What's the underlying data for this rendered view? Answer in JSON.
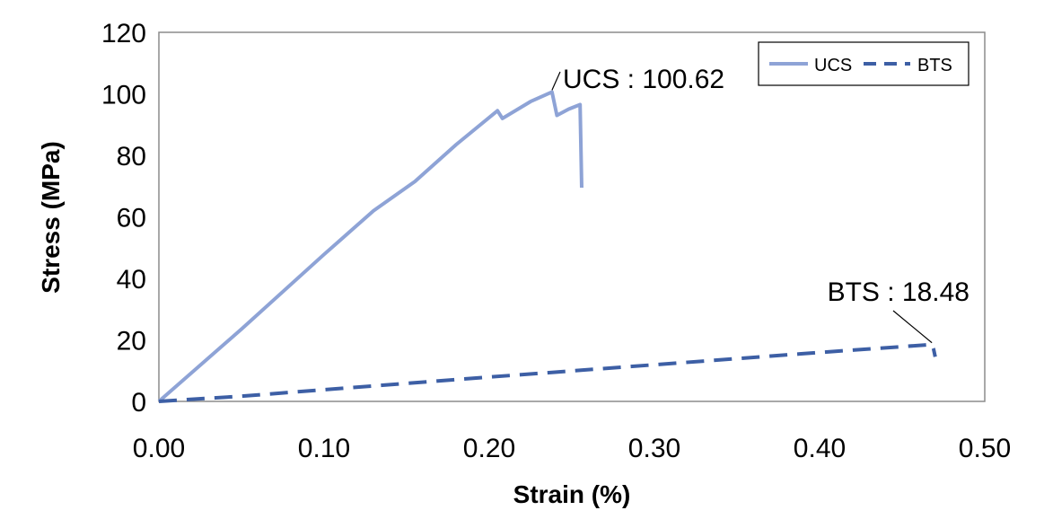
{
  "chart_data": {
    "type": "line",
    "title": "",
    "xlabel": "Strain (%)",
    "ylabel": "Stress (MPa)",
    "xlim": [
      0,
      0.5
    ],
    "ylim": [
      0,
      120
    ],
    "x_ticks": [
      "0.00",
      "0.10",
      "0.20",
      "0.30",
      "0.40",
      "0.50"
    ],
    "y_ticks": [
      "0",
      "20",
      "40",
      "60",
      "80",
      "100",
      "120"
    ],
    "grid": false,
    "legend_position": "top-right",
    "series": [
      {
        "name": "UCS",
        "color": "#8ea3d6",
        "line_style": "solid",
        "x": [
          0.0,
          0.05,
          0.1,
          0.13,
          0.155,
          0.18,
          0.205,
          0.208,
          0.225,
          0.238,
          0.241,
          0.248,
          0.255,
          0.256
        ],
        "y": [
          0.0,
          23.5,
          47.8,
          62.0,
          71.5,
          83.5,
          94.5,
          92.0,
          97.5,
          100.62,
          93.0,
          95.0,
          96.5,
          69.5
        ]
      },
      {
        "name": "BTS",
        "color": "#3d5fa5",
        "line_style": "dashed",
        "x": [
          0.0,
          0.05,
          0.1,
          0.2,
          0.3,
          0.4,
          0.468,
          0.469,
          0.47
        ],
        "y": [
          0.0,
          1.7,
          3.8,
          7.9,
          11.9,
          15.9,
          18.48,
          17.0,
          14.5
        ]
      }
    ],
    "annotations": [
      {
        "text": "UCS : 100.62",
        "series": "UCS",
        "x": 0.238,
        "y": 100.62
      },
      {
        "text": "BTS : 18.48",
        "series": "BTS",
        "x": 0.468,
        "y": 18.48
      }
    ]
  }
}
